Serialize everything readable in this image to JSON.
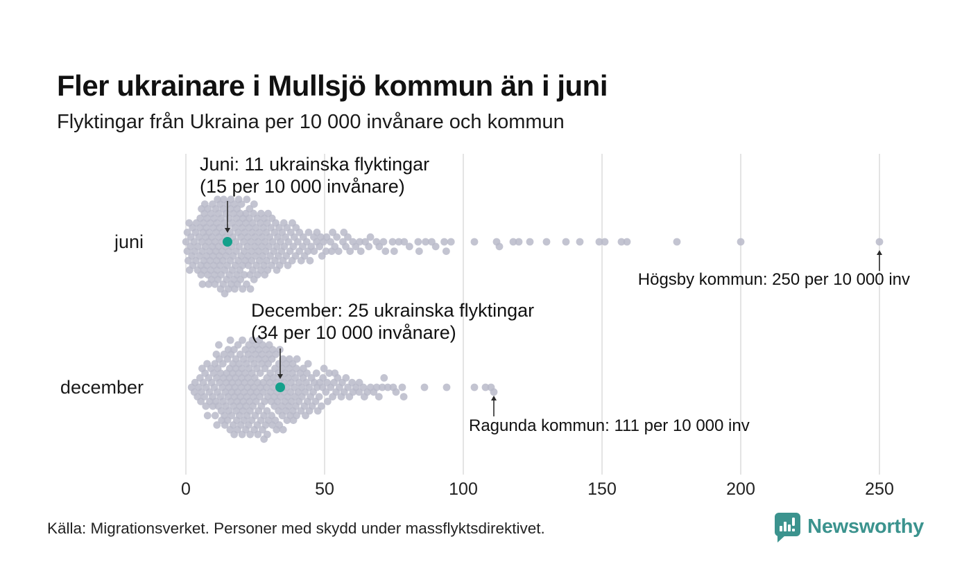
{
  "header": {
    "title": "Fler ukrainare i Mullsjö kommun än i juni",
    "subtitle": "Flyktingar från Ukraina per 10 000 invånare och kommun"
  },
  "footer": {
    "source": "Källa: Migrationsverket. Personer med skydd under massflyktsdirektivet.",
    "brand_name": "Newsworthy",
    "brand_icon": "newsworthy-speech-bubble-bar-chart-icon"
  },
  "colors": {
    "dot": "#b9bac9",
    "highlight": "#14a08b",
    "grid": "#d9d9d9",
    "arrow": "#2b2b2b",
    "brand": "#3b938e",
    "text": "#1a1a1a"
  },
  "chart_data": {
    "type": "beeswarm",
    "title": "Fler ukrainare i Mullsjö kommun än i juni",
    "subtitle": "Flyktingar från Ukraina per 10 000 invånare och kommun",
    "unit": "flyktingar per 10 000 invånare per kommun",
    "x_ticks": [
      "0",
      "50",
      "100",
      "150",
      "200",
      "250"
    ],
    "x_tick_values": [
      0,
      50,
      100,
      150,
      200,
      250
    ],
    "x_range": [
      0,
      255
    ],
    "grid": true,
    "legend": "none",
    "series": [
      {
        "label": "juni",
        "highlight": {
          "value": 15,
          "line1": "Juni: 11 ukrainska flyktingar",
          "line2": "(15 per 10 000 invånare)"
        },
        "max_annotation": {
          "value": 250,
          "text": "Högsby kommun: 250 per 10 000 inv"
        },
        "distribution_bins": [
          {
            "from": 0,
            "to": 5,
            "count": 20
          },
          {
            "from": 5,
            "to": 10,
            "count": 36
          },
          {
            "from": 10,
            "to": 15,
            "count": 40
          },
          {
            "from": 15,
            "to": 20,
            "count": 38
          },
          {
            "from": 20,
            "to": 25,
            "count": 34
          },
          {
            "from": 25,
            "to": 30,
            "count": 27
          },
          {
            "from": 30,
            "to": 35,
            "count": 20
          },
          {
            "from": 35,
            "to": 40,
            "count": 15
          },
          {
            "from": 40,
            "to": 45,
            "count": 11
          },
          {
            "from": 45,
            "to": 50,
            "count": 9
          },
          {
            "from": 50,
            "to": 55,
            "count": 7
          },
          {
            "from": 55,
            "to": 60,
            "count": 6
          },
          {
            "from": 60,
            "to": 65,
            "count": 5
          },
          {
            "from": 65,
            "to": 70,
            "count": 4
          },
          {
            "from": 70,
            "to": 75,
            "count": 3
          },
          {
            "from": 75,
            "to": 80,
            "count": 3
          },
          {
            "from": 80,
            "to": 88,
            "count": 4
          },
          {
            "from": 88,
            "to": 97,
            "count": 5
          }
        ],
        "outliers": [
          104,
          112,
          113,
          118,
          120,
          124,
          130,
          137,
          142,
          149,
          151,
          157,
          159,
          177,
          200,
          250
        ]
      },
      {
        "label": "december",
        "highlight": {
          "value": 34,
          "line1": "December: 25 ukrainska flyktingar",
          "line2": "(34 per 10 000 invånare)"
        },
        "max_annotation": {
          "value": 111,
          "text": "Ragunda kommun: 111 per 10 000 inv"
        },
        "distribution_bins": [
          {
            "from": 2,
            "to": 5,
            "count": 5
          },
          {
            "from": 5,
            "to": 10,
            "count": 18
          },
          {
            "from": 10,
            "to": 15,
            "count": 30
          },
          {
            "from": 15,
            "to": 20,
            "count": 40
          },
          {
            "from": 20,
            "to": 25,
            "count": 40
          },
          {
            "from": 25,
            "to": 30,
            "count": 38
          },
          {
            "from": 30,
            "to": 35,
            "count": 32
          },
          {
            "from": 35,
            "to": 40,
            "count": 28
          },
          {
            "from": 40,
            "to": 45,
            "count": 20
          },
          {
            "from": 45,
            "to": 50,
            "count": 14
          },
          {
            "from": 50,
            "to": 55,
            "count": 10
          },
          {
            "from": 55,
            "to": 60,
            "count": 8
          },
          {
            "from": 60,
            "to": 65,
            "count": 6
          },
          {
            "from": 65,
            "to": 70,
            "count": 5
          },
          {
            "from": 70,
            "to": 75,
            "count": 4
          },
          {
            "from": 75,
            "to": 80,
            "count": 3
          }
        ],
        "outliers": [
          86,
          94,
          104,
          108,
          110,
          111
        ]
      }
    ]
  }
}
